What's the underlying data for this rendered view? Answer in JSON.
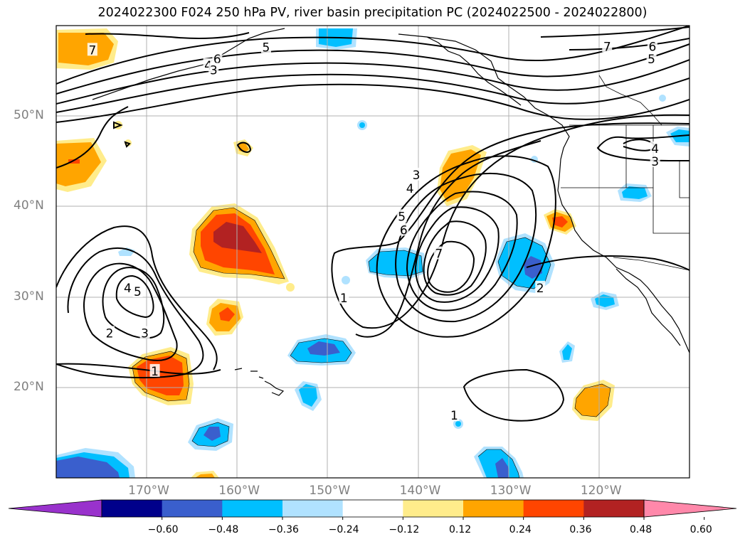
{
  "title": "2024022300 F024 250 hPa PV, river basin precipitation PC (2024022500 - 2024022800)",
  "map": {
    "lon_range": [
      -180,
      -110
    ],
    "lat_range": [
      10,
      60
    ],
    "lat_ticks": [
      {
        "value": 50,
        "label": "50°N"
      },
      {
        "value": 40,
        "label": "40°N"
      },
      {
        "value": 30,
        "label": "30°N"
      },
      {
        "value": 20,
        "label": "20°N"
      }
    ],
    "lon_ticks": [
      {
        "value": -170,
        "label": "170°W"
      },
      {
        "value": -160,
        "label": "160°W"
      },
      {
        "value": -150,
        "label": "150°W"
      },
      {
        "value": -140,
        "label": "140°W"
      },
      {
        "value": -130,
        "label": "130°W"
      },
      {
        "value": -120,
        "label": "120°W"
      }
    ],
    "grid": true,
    "contour_labels": [
      {
        "text": "7",
        "lon": -176.0,
        "lat": 57.3
      },
      {
        "text": "6",
        "lon": -162.2,
        "lat": 56.3
      },
      {
        "text": "5",
        "lon": -156.8,
        "lat": 57.6
      },
      {
        "text": "4",
        "lon": -163.2,
        "lat": 55.6
      },
      {
        "text": "3",
        "lon": -162.6,
        "lat": 55.1
      },
      {
        "text": "7",
        "lon": -119.1,
        "lat": 57.7
      },
      {
        "text": "6",
        "lon": -114.1,
        "lat": 57.7
      },
      {
        "text": "5",
        "lon": -114.2,
        "lat": 56.3
      },
      {
        "text": "3",
        "lon": -140.2,
        "lat": 43.5
      },
      {
        "text": "4",
        "lon": -140.9,
        "lat": 42.0
      },
      {
        "text": "5",
        "lon": -141.8,
        "lat": 38.9
      },
      {
        "text": "6",
        "lon": -141.6,
        "lat": 37.4
      },
      {
        "text": "7",
        "lon": -137.7,
        "lat": 34.8
      },
      {
        "text": "1",
        "lon": -148.2,
        "lat": 29.9
      },
      {
        "text": "2",
        "lon": -126.5,
        "lat": 31.0
      },
      {
        "text": "4",
        "lon": -113.8,
        "lat": 46.4
      },
      {
        "text": "3",
        "lon": -113.8,
        "lat": 45.0
      },
      {
        "text": "4",
        "lon": -172.1,
        "lat": 31.0
      },
      {
        "text": "5",
        "lon": -171.0,
        "lat": 30.6
      },
      {
        "text": "3",
        "lon": -170.2,
        "lat": 26.0
      },
      {
        "text": "2",
        "lon": -174.1,
        "lat": 26.0
      },
      {
        "text": "1",
        "lon": -169.1,
        "lat": 21.8
      },
      {
        "text": "1",
        "lon": -136.0,
        "lat": 16.9
      }
    ]
  },
  "colorbar": {
    "colors": [
      "#9932cc",
      "#00008b",
      "#3a5fcd",
      "#00bfff",
      "#b0e2ff",
      "#ffffff",
      "#ffec8b",
      "#ffa500",
      "#ff4500",
      "#b22222",
      "#ff88aa"
    ],
    "tick_labels": [
      "−0.60",
      "−0.48",
      "−0.36",
      "−0.24",
      "−0.12",
      "0.12",
      "0.24",
      "0.36",
      "0.48",
      "0.60"
    ]
  }
}
